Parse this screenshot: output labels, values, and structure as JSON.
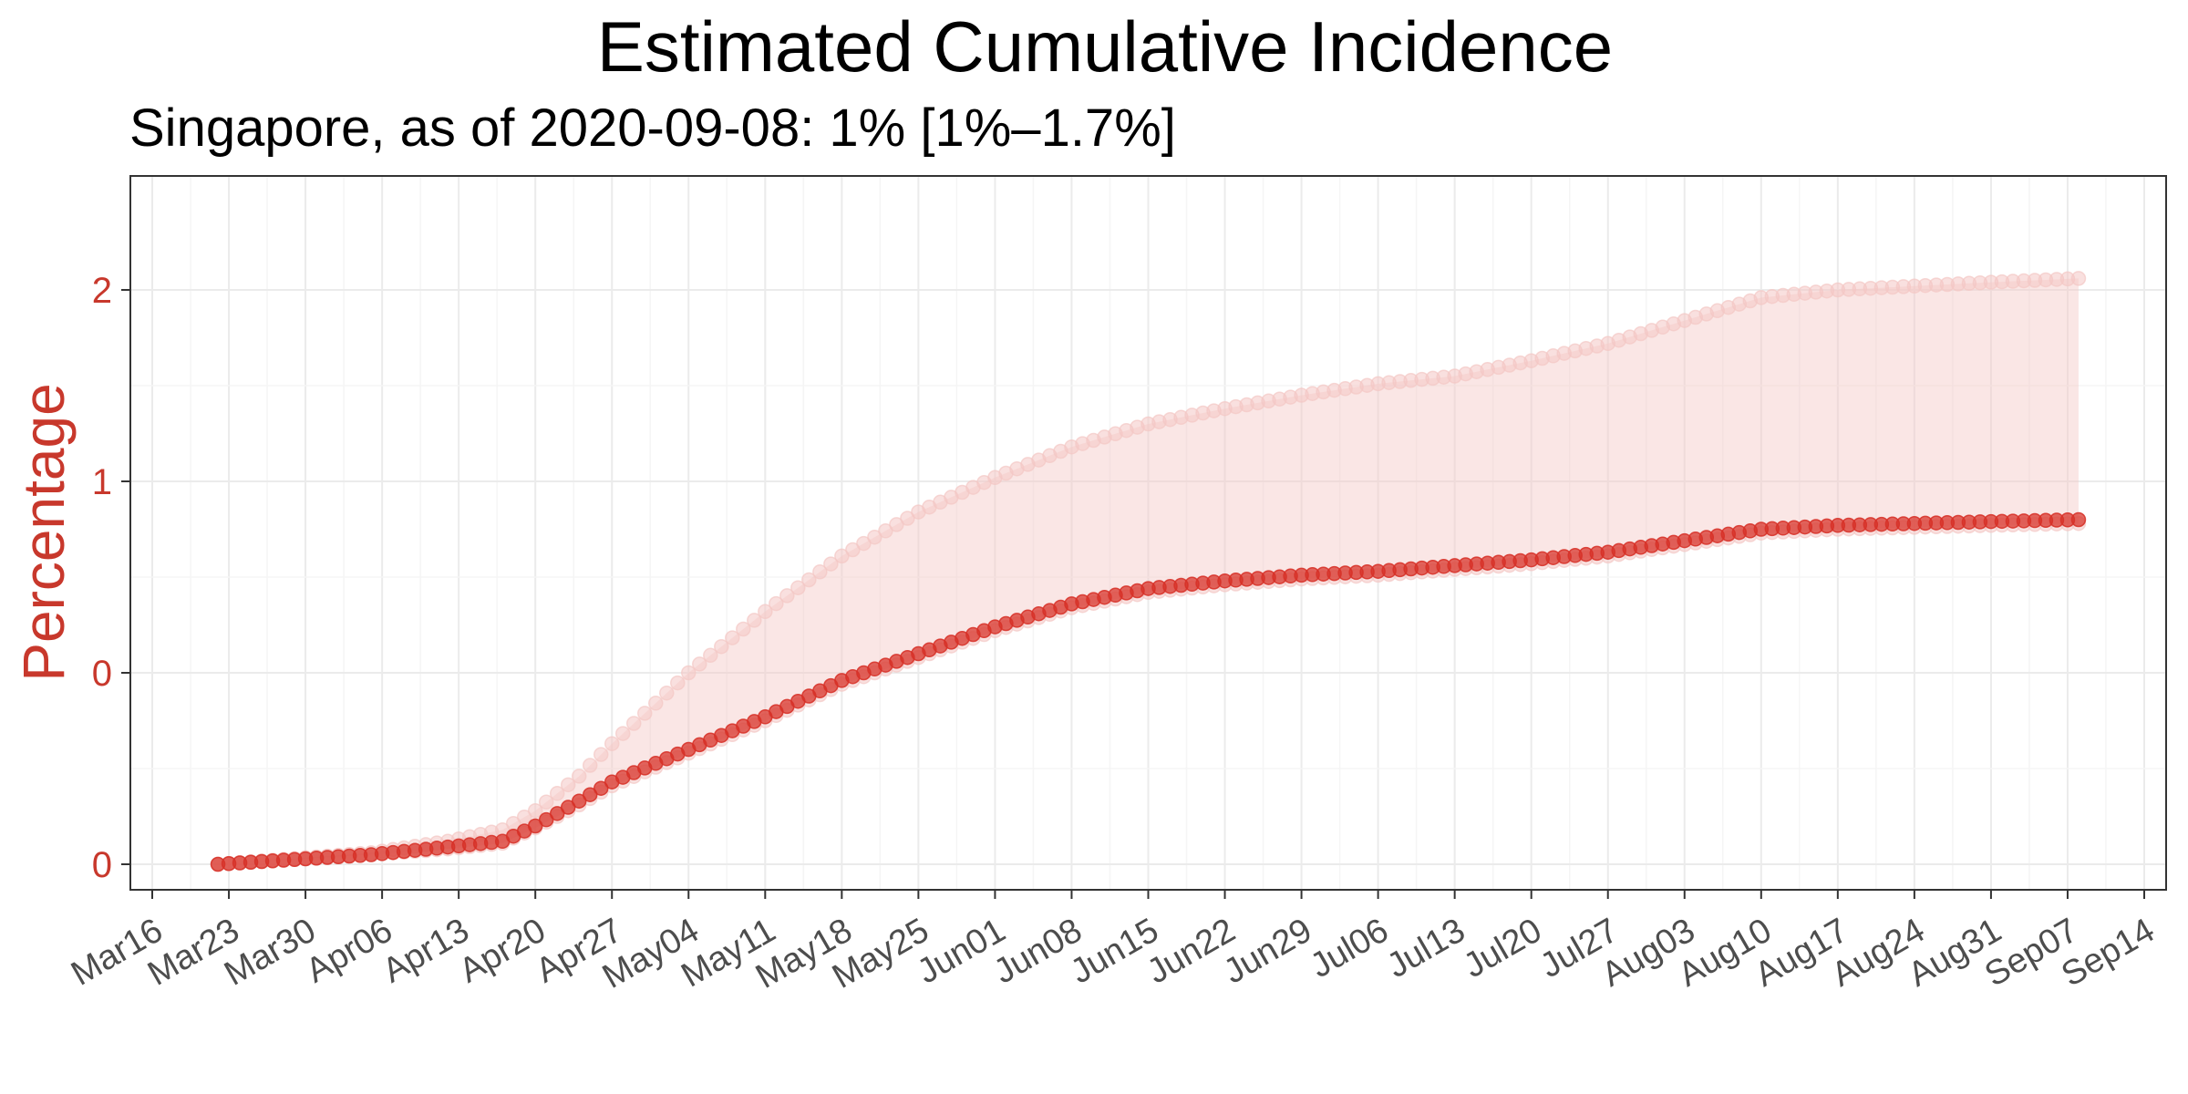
{
  "chart_data": {
    "type": "line",
    "title": "Estimated Cumulative Incidence",
    "subtitle": "Singapore, as of 2020-09-08:  1% [1%–1.7%]",
    "ylabel": "Percentage",
    "xlabel": "",
    "x_tick_labels": [
      "Mar16",
      "Mar23",
      "Mar30",
      "Apr06",
      "Apr13",
      "Apr20",
      "Apr27",
      "May04",
      "May11",
      "May18",
      "May25",
      "Jun01",
      "Jun08",
      "Jun15",
      "Jun22",
      "Jun29",
      "Jul06",
      "Jul13",
      "Jul20",
      "Jul27",
      "Aug03",
      "Aug10",
      "Aug17",
      "Aug24",
      "Aug31",
      "Sep07",
      "Sep14"
    ],
    "y_tick_labels": [
      "0",
      "0",
      "1",
      "2"
    ],
    "x_start_date": "2020-03-22",
    "x_end_date": "2020-09-08",
    "xlim": [
      "2020-03-14",
      "2020-09-16"
    ],
    "grid": true,
    "colors": {
      "estimate": "#d73027",
      "band": "#f4c7c5",
      "ytick": "#c8382c",
      "ylabel": "#c8382c"
    },
    "series": [
      {
        "role": "estimate",
        "x": [
          "2020-03-22",
          "2020-04-05",
          "2020-04-12",
          "2020-04-17",
          "2020-04-20",
          "2020-04-24",
          "2020-04-27",
          "2020-05-04",
          "2020-05-11",
          "2020-05-18",
          "2020-05-25",
          "2020-06-01",
          "2020-06-08",
          "2020-06-15",
          "2020-06-22",
          "2020-06-29",
          "2020-07-06",
          "2020-07-13",
          "2020-07-20",
          "2020-07-27",
          "2020-08-03",
          "2020-08-10",
          "2020-08-17",
          "2020-08-24",
          "2020-08-31",
          "2020-09-08"
        ],
        "values_px_scale": [
          0.0,
          0.05,
          0.09,
          0.12,
          0.2,
          0.33,
          0.43,
          0.6,
          0.77,
          0.96,
          1.1,
          1.24,
          1.36,
          1.44,
          1.48,
          1.51,
          1.53,
          1.56,
          1.59,
          1.63,
          1.69,
          1.75,
          1.77,
          1.78,
          1.79,
          1.8
        ]
      },
      {
        "role": "lower",
        "x": [
          "2020-03-22",
          "2020-04-05",
          "2020-04-12",
          "2020-04-17",
          "2020-04-20",
          "2020-04-24",
          "2020-04-27",
          "2020-05-04",
          "2020-05-11",
          "2020-05-18",
          "2020-05-25",
          "2020-06-01",
          "2020-06-08",
          "2020-06-15",
          "2020-06-22",
          "2020-06-29",
          "2020-07-06",
          "2020-07-13",
          "2020-07-20",
          "2020-07-27",
          "2020-08-03",
          "2020-08-10",
          "2020-08-17",
          "2020-08-24",
          "2020-08-31",
          "2020-09-08"
        ],
        "values_px_scale": [
          0.0,
          0.05,
          0.08,
          0.11,
          0.19,
          0.31,
          0.41,
          0.58,
          0.75,
          0.94,
          1.08,
          1.22,
          1.34,
          1.42,
          1.46,
          1.49,
          1.51,
          1.54,
          1.57,
          1.61,
          1.67,
          1.73,
          1.75,
          1.76,
          1.77,
          1.78
        ]
      },
      {
        "role": "upper",
        "x": [
          "2020-03-22",
          "2020-04-05",
          "2020-04-12",
          "2020-04-17",
          "2020-04-20",
          "2020-04-24",
          "2020-04-27",
          "2020-05-04",
          "2020-05-11",
          "2020-05-18",
          "2020-05-25",
          "2020-06-01",
          "2020-06-08",
          "2020-06-15",
          "2020-06-22",
          "2020-06-29",
          "2020-07-06",
          "2020-07-13",
          "2020-07-20",
          "2020-07-27",
          "2020-08-03",
          "2020-08-10",
          "2020-08-17",
          "2020-08-24",
          "2020-08-31",
          "2020-09-08"
        ],
        "values_px_scale": [
          0.0,
          0.06,
          0.12,
          0.18,
          0.28,
          0.46,
          0.63,
          1.0,
          1.32,
          1.61,
          1.84,
          2.02,
          2.18,
          2.3,
          2.38,
          2.45,
          2.51,
          2.55,
          2.63,
          2.72,
          2.84,
          2.96,
          3.0,
          3.02,
          3.04,
          3.06
        ]
      }
    ]
  }
}
